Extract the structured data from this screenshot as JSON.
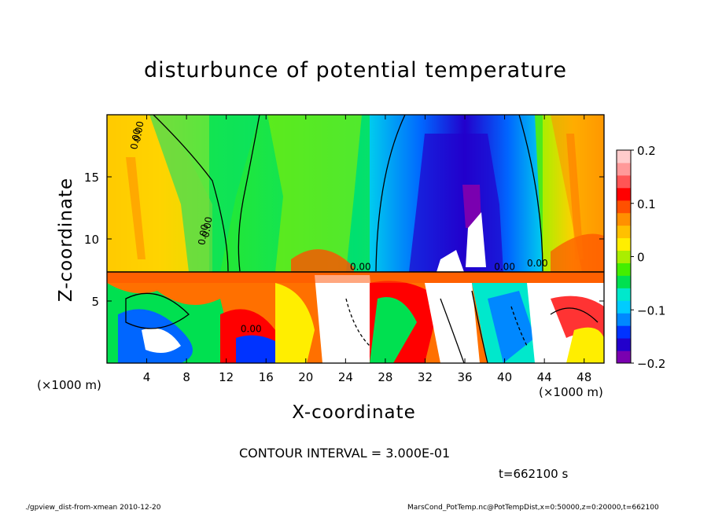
{
  "chart_data": {
    "type": "heatmap",
    "title": "disturbunce of potential temperature",
    "xlabel": "X-coordinate",
    "ylabel": "Z-coordinate",
    "x_unit": "(×1000 m)",
    "y_unit": "(×1000 m)",
    "xlim": [
      0,
      50
    ],
    "ylim": [
      0,
      20
    ],
    "x_ticks": [
      4,
      8,
      12,
      16,
      20,
      24,
      28,
      32,
      36,
      40,
      44,
      48
    ],
    "y_ticks": [
      5,
      10,
      15
    ],
    "colorbar": {
      "range": [
        -0.2,
        0.2
      ],
      "ticks": [
        0.2,
        0.1,
        0,
        -0.1,
        -0.2
      ],
      "tick_labels": [
        "0.2",
        "0.1",
        "0",
        "−0.1",
        "−0.2"
      ],
      "colors": [
        "#7a00b0",
        "#2200cc",
        "#0033ff",
        "#0088ff",
        "#00ccff",
        "#00e8cc",
        "#00e050",
        "#44ee00",
        "#aaee00",
        "#ffee00",
        "#ffc000",
        "#ff9000",
        "#ff5000",
        "#ff0000",
        "#ff5555",
        "#ff9999",
        "#ffcccc"
      ]
    },
    "contour_label": "0.00",
    "contour_interval_text": "CONTOUR INTERVAL = 3.000E-01",
    "time_text": "t=662100 s"
  },
  "footer": {
    "left": "./gpview_dist-from-xmean  2010-12-20",
    "right": "MarsCond_PotTemp.nc@PotTempDist,x=0:50000,z=0:20000,t=662100"
  }
}
